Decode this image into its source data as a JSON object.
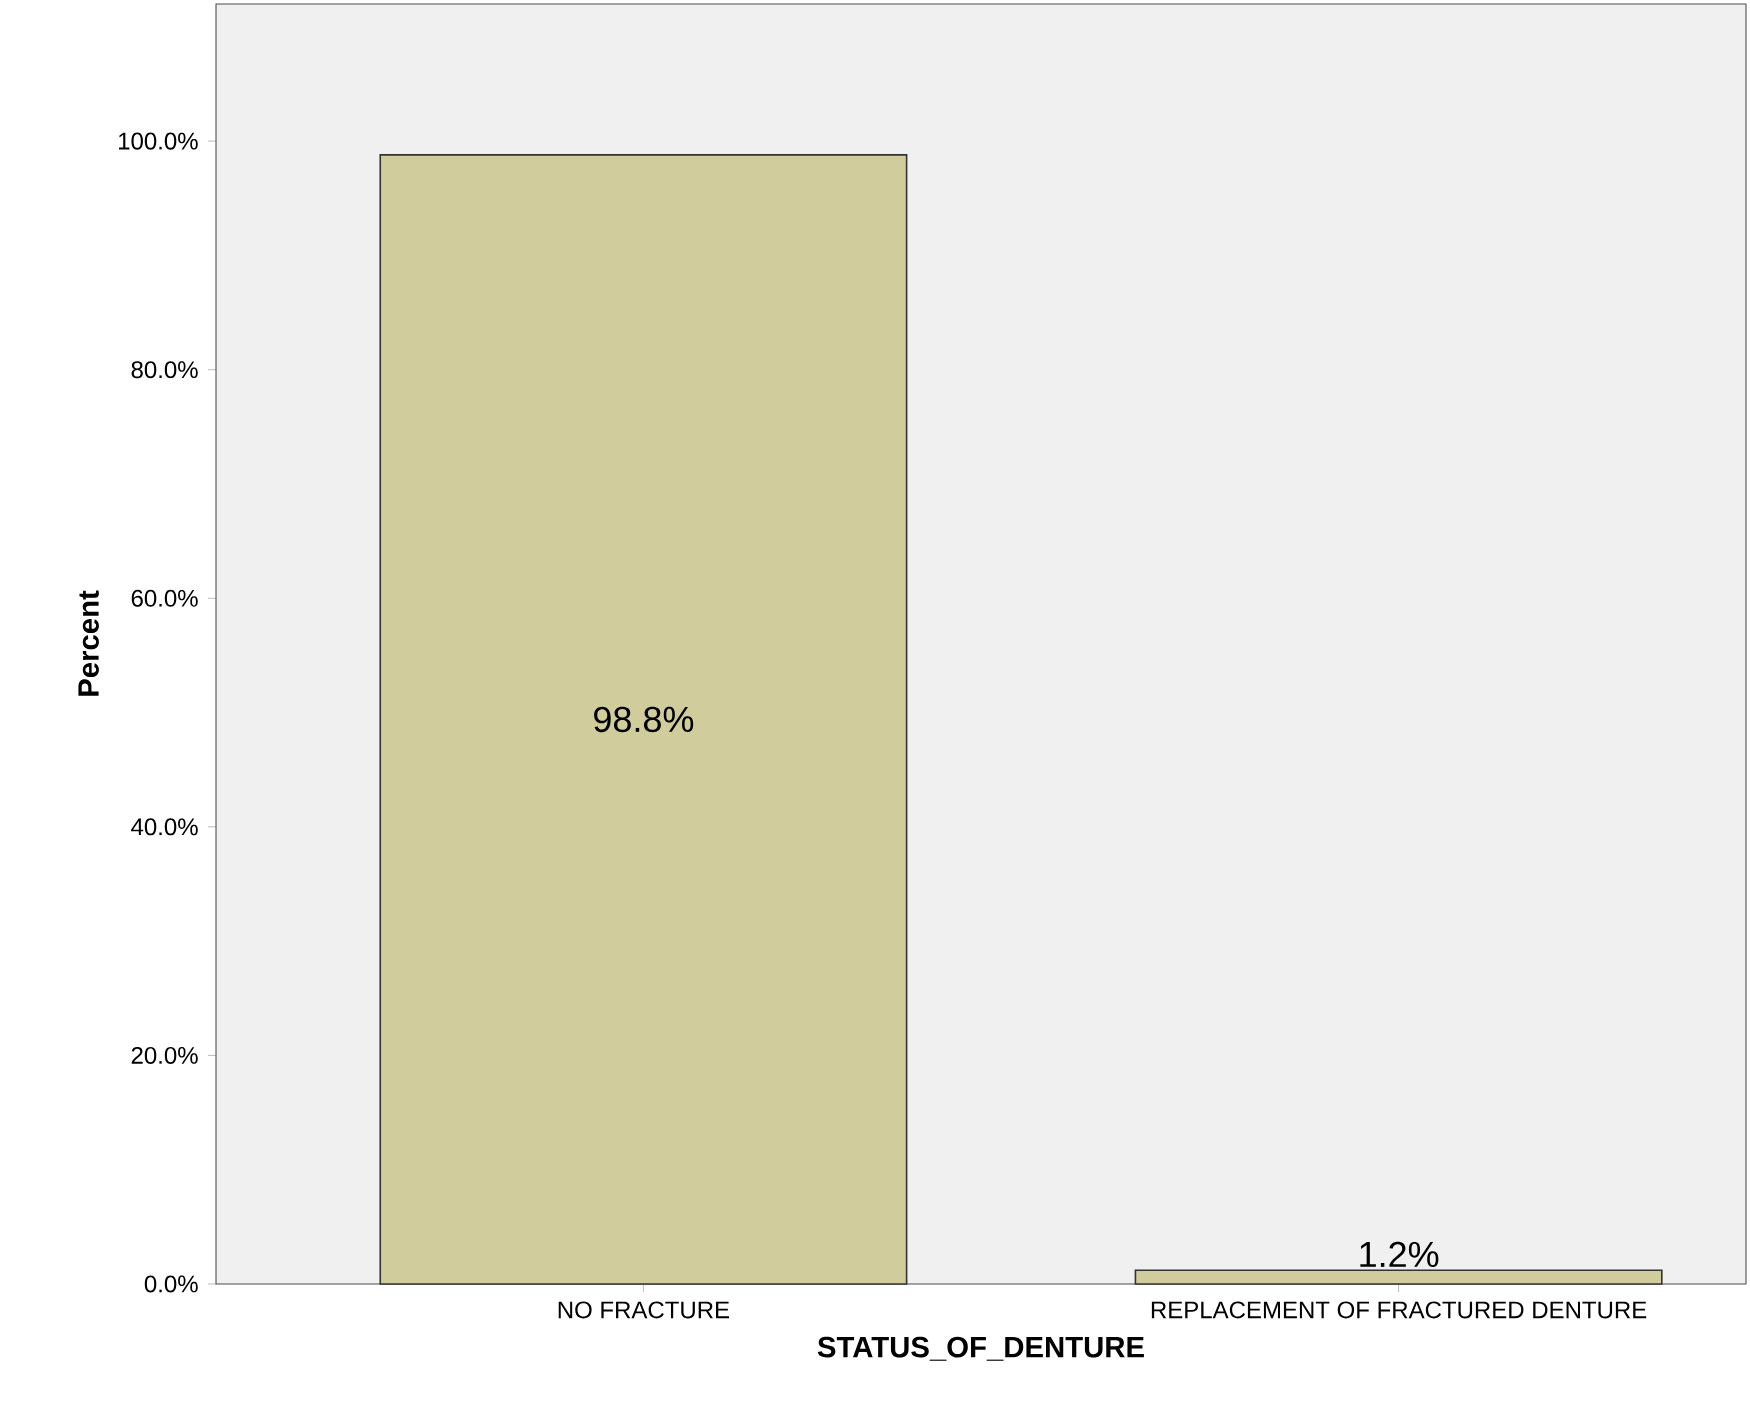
{
  "chart_data": {
    "type": "bar",
    "xlabel": "STATUS_OF_DENTURE",
    "ylabel": "Percent",
    "categories": [
      "NO FRACTURE",
      "REPLACEMENT OF FRACTURED DENTURE"
    ],
    "values": [
      98.8,
      1.2
    ],
    "value_labels": [
      "98.8%",
      "1.2%"
    ],
    "color": "#d0cc9c",
    "ylim": [
      0,
      112
    ],
    "yticks": [
      {
        "value": 0,
        "label": "0.0%"
      },
      {
        "value": 20,
        "label": "20.0%"
      },
      {
        "value": 40,
        "label": "40.0%"
      },
      {
        "value": 60,
        "label": "60.0%"
      },
      {
        "value": 80,
        "label": "80.0%"
      },
      {
        "value": 100,
        "label": "100.0%"
      }
    ],
    "grid": false
  }
}
